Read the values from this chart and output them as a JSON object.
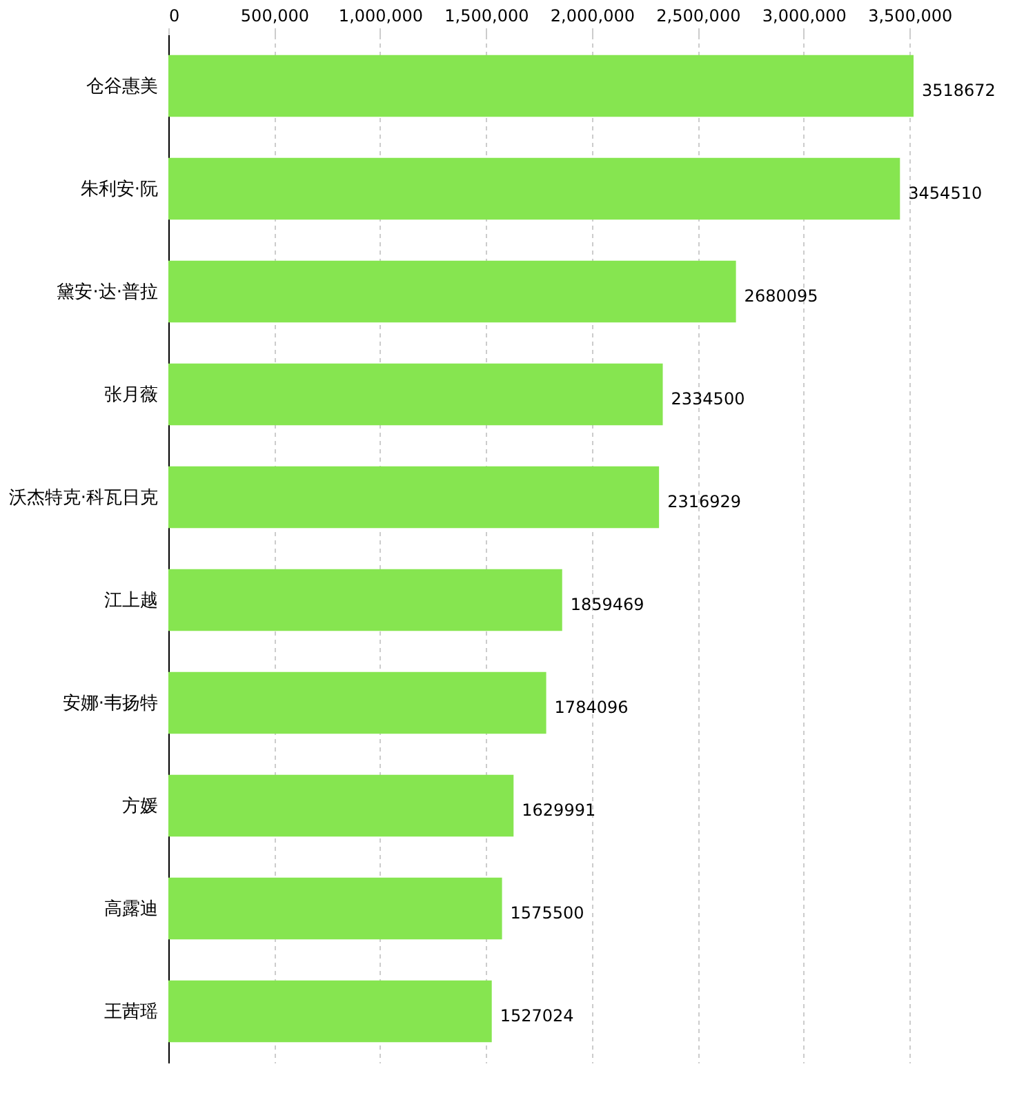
{
  "chart_data": {
    "type": "bar",
    "orientation": "horizontal",
    "categories": [
      "仓谷惠美",
      "朱利安·阮",
      "黛安·达·普拉",
      "张月薇",
      "沃杰特克·科瓦日克",
      "江上越",
      "安娜·韦扬特",
      "方媛",
      "高露迪",
      "王茜瑶"
    ],
    "values": [
      3518672,
      3454510,
      2680095,
      2334500,
      2316929,
      1859469,
      1784096,
      1629991,
      1575500,
      1527024
    ],
    "color": "#86e550",
    "xlim": [
      0,
      3518672
    ],
    "xticks": [
      0,
      {
        "value": 500000,
        "label": "500,000"
      },
      {
        "value": 1000000,
        "label": "1,000,000"
      },
      {
        "value": 1500000,
        "label": "1,500,000"
      },
      {
        "value": 2000000,
        "label": "2,000,000"
      },
      {
        "value": 2500000,
        "label": "2,500,000"
      },
      {
        "value": 3000000,
        "label": "3,000,000"
      },
      {
        "value": 3500000,
        "label": "3,500,000"
      }
    ],
    "grid": "x",
    "data_labels": true
  }
}
